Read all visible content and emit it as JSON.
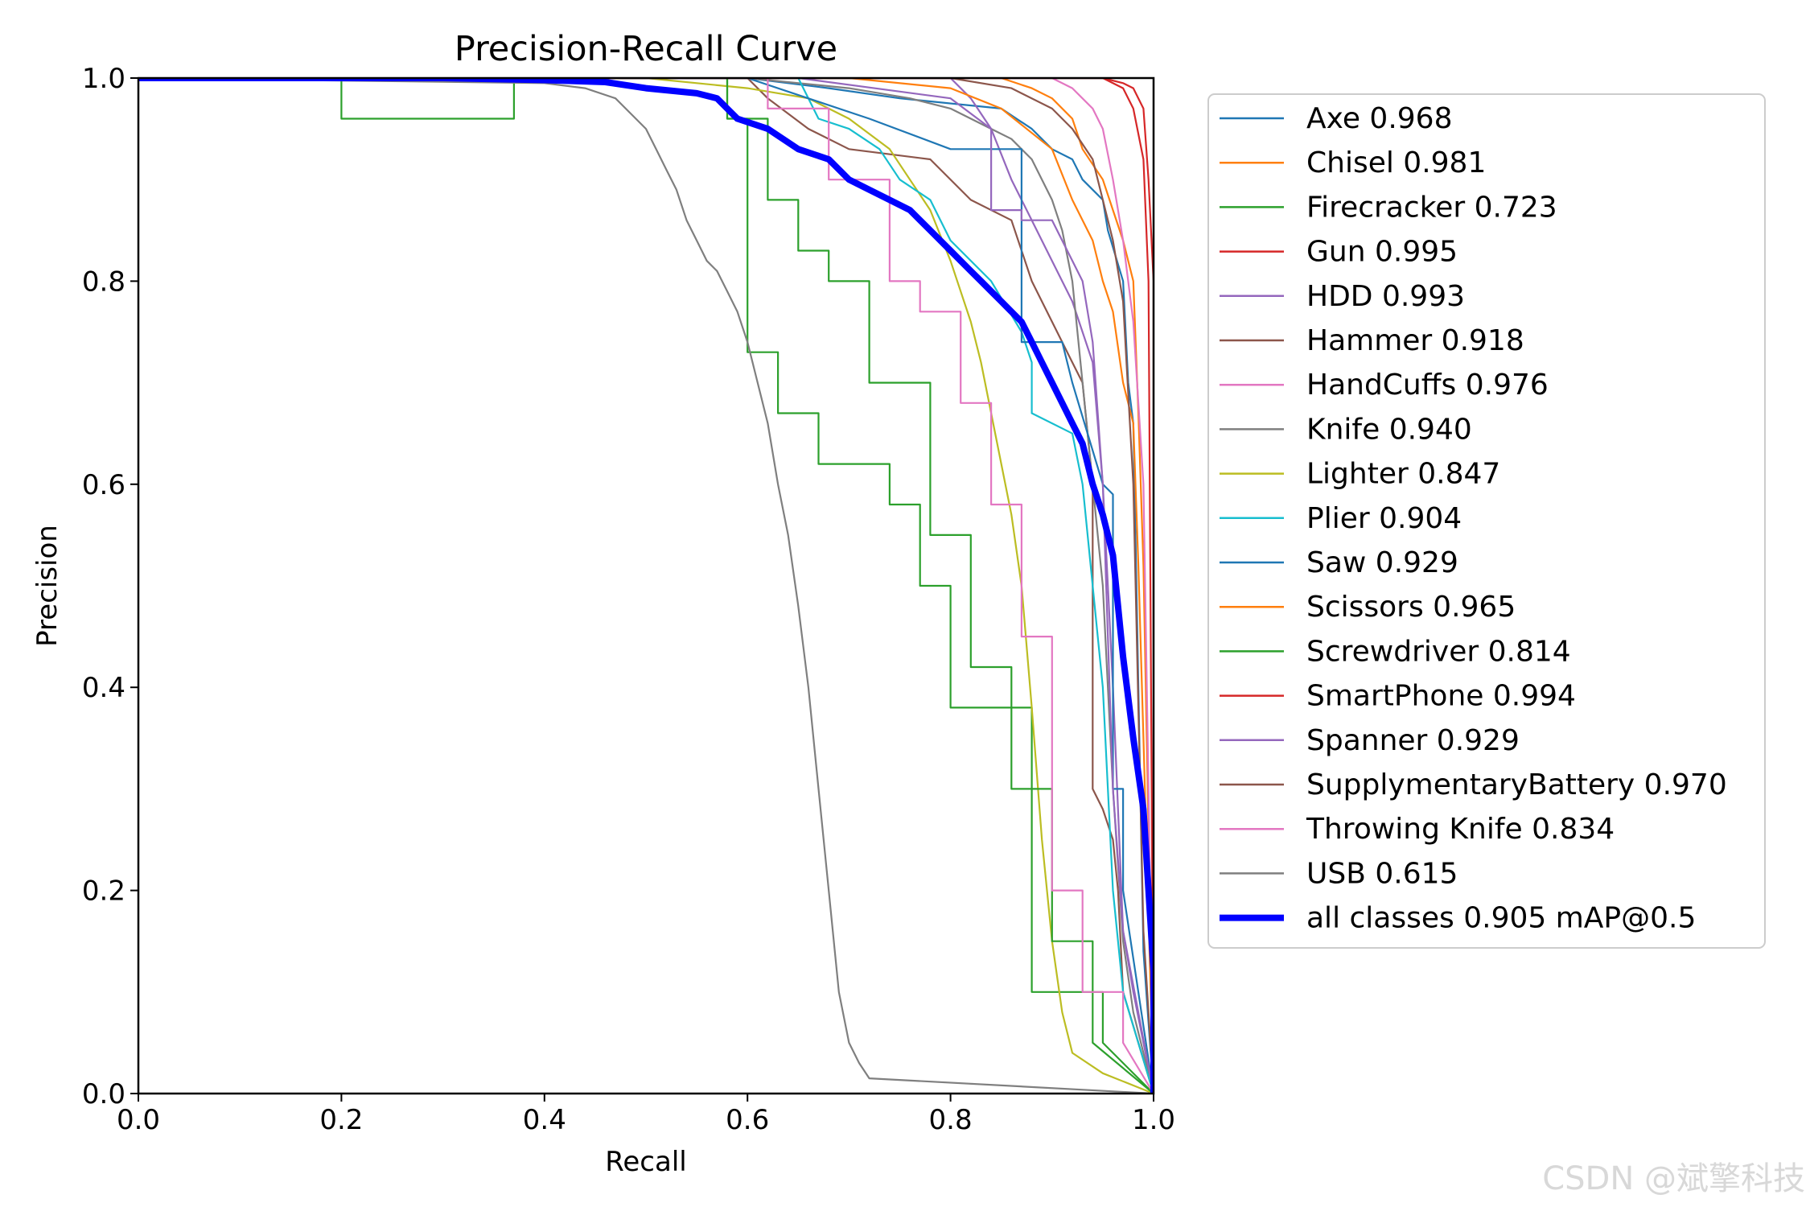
{
  "chart_data": {
    "type": "line",
    "title": "Precision-Recall Curve",
    "xlabel": "Recall",
    "ylabel": "Precision",
    "xlim": [
      0,
      1
    ],
    "ylim": [
      0,
      1
    ],
    "x_ticks": [
      "0.0",
      "0.2",
      "0.4",
      "0.6",
      "0.8",
      "1.0"
    ],
    "y_ticks": [
      "0.0",
      "0.2",
      "0.4",
      "0.6",
      "0.8",
      "1.0"
    ],
    "grid": false,
    "legend_position": "outside-right",
    "series": [
      {
        "name": "Axe",
        "ap": "0.968",
        "label": "Axe 0.968",
        "color": "#1f77b4",
        "x": [
          0,
          0.6,
          0.68,
          0.75,
          0.85,
          0.88,
          0.9,
          0.92,
          0.93,
          0.95,
          0.955,
          0.97,
          0.975,
          0.98,
          0.99,
          1.0
        ],
        "y": [
          1,
          1,
          0.99,
          0.98,
          0.97,
          0.95,
          0.93,
          0.92,
          0.9,
          0.88,
          0.85,
          0.8,
          0.7,
          0.66,
          0.14,
          0
        ]
      },
      {
        "name": "Chisel",
        "ap": "0.981",
        "label": "Chisel 0.981",
        "color": "#ff7f0e",
        "x": [
          0,
          0.85,
          0.88,
          0.9,
          0.92,
          0.93,
          0.95,
          0.96,
          0.97,
          0.98,
          0.985,
          0.99,
          1.0
        ],
        "y": [
          1,
          1,
          0.99,
          0.98,
          0.96,
          0.93,
          0.9,
          0.87,
          0.84,
          0.8,
          0.67,
          0.52,
          0
        ]
      },
      {
        "name": "Firecracker",
        "ap": "0.723",
        "label": "Firecracker 0.723",
        "color": "#2ca02c",
        "x": [
          0,
          0.2,
          0.2,
          0.37,
          0.37,
          0.58,
          0.58,
          0.6,
          0.6,
          0.63,
          0.63,
          0.67,
          0.67,
          0.74,
          0.74,
          0.77,
          0.77,
          0.8,
          0.8,
          0.88,
          0.88,
          0.95,
          0.95,
          1.0
        ],
        "y": [
          1,
          1,
          0.96,
          0.96,
          1,
          1,
          0.96,
          0.96,
          0.73,
          0.73,
          0.67,
          0.67,
          0.62,
          0.62,
          0.58,
          0.58,
          0.5,
          0.5,
          0.38,
          0.38,
          0.1,
          0.1,
          0.05,
          0
        ]
      },
      {
        "name": "Gun",
        "ap": "0.995",
        "label": "Gun 0.995",
        "color": "#d62728",
        "x": [
          0,
          0.9,
          0.95,
          0.97,
          0.98,
          0.99,
          0.995,
          1.0,
          1.0
        ],
        "y": [
          1,
          1,
          1,
          0.995,
          0.99,
          0.97,
          0.9,
          0.8,
          0
        ]
      },
      {
        "name": "HDD",
        "ap": "0.993",
        "label": "HDD 0.993",
        "color": "#9467bd",
        "x": [
          0,
          0.8,
          0.82,
          0.84,
          0.86,
          0.88,
          0.9,
          0.92,
          0.94,
          0.95,
          0.96,
          0.97,
          0.98,
          0.99,
          1.0
        ],
        "y": [
          1,
          1,
          0.98,
          0.95,
          0.9,
          0.86,
          0.82,
          0.78,
          0.72,
          0.6,
          0.4,
          0.16,
          0.1,
          0.05,
          0
        ]
      },
      {
        "name": "Hammer",
        "ap": "0.918",
        "label": "Hammer 0.918",
        "color": "#8c564b",
        "x": [
          0,
          0.6,
          0.62,
          0.66,
          0.7,
          0.78,
          0.82,
          0.86,
          0.88,
          0.9,
          0.92,
          0.93,
          0.94,
          0.94,
          0.95,
          0.96,
          0.965,
          0.97,
          1.0
        ],
        "y": [
          1,
          1,
          0.98,
          0.95,
          0.93,
          0.92,
          0.88,
          0.86,
          0.8,
          0.76,
          0.72,
          0.7,
          0.6,
          0.3,
          0.28,
          0.25,
          0.2,
          0.1,
          0
        ]
      },
      {
        "name": "HandCuffs",
        "ap": "0.976",
        "label": "HandCuffs 0.976",
        "color": "#e377c2",
        "x": [
          0,
          0.9,
          0.92,
          0.94,
          0.95,
          0.96,
          0.97,
          0.98,
          0.99,
          1.0
        ],
        "y": [
          1,
          1,
          0.99,
          0.97,
          0.95,
          0.9,
          0.84,
          0.76,
          0.6,
          0
        ]
      },
      {
        "name": "Knife",
        "ap": "0.940",
        "label": "Knife 0.940",
        "color": "#7f7f7f",
        "x": [
          0,
          0.6,
          0.7,
          0.76,
          0.8,
          0.84,
          0.86,
          0.88,
          0.9,
          0.91,
          0.92,
          0.93,
          0.94,
          0.95,
          0.96,
          0.97,
          0.98,
          1.0
        ],
        "y": [
          1,
          1,
          0.99,
          0.98,
          0.97,
          0.95,
          0.94,
          0.92,
          0.88,
          0.85,
          0.8,
          0.7,
          0.6,
          0.5,
          0.3,
          0.15,
          0.08,
          0
        ]
      },
      {
        "name": "Lighter",
        "ap": "0.847",
        "label": "Lighter 0.847",
        "color": "#bcbd22",
        "x": [
          0,
          0.5,
          0.6,
          0.66,
          0.7,
          0.74,
          0.76,
          0.78,
          0.8,
          0.82,
          0.83,
          0.84,
          0.85,
          0.86,
          0.87,
          0.88,
          0.89,
          0.9,
          0.91,
          0.92,
          0.95,
          1.0
        ],
        "y": [
          1,
          1,
          0.99,
          0.98,
          0.96,
          0.93,
          0.9,
          0.87,
          0.82,
          0.76,
          0.72,
          0.67,
          0.62,
          0.57,
          0.5,
          0.38,
          0.25,
          0.15,
          0.08,
          0.04,
          0.02,
          0
        ]
      },
      {
        "name": "Plier",
        "ap": "0.904",
        "label": "Plier 0.904",
        "color": "#17becf",
        "x": [
          0,
          0.65,
          0.67,
          0.7,
          0.73,
          0.75,
          0.78,
          0.8,
          0.84,
          0.87,
          0.88,
          0.88,
          0.92,
          0.93,
          0.94,
          0.95,
          0.96,
          0.97,
          1.0
        ],
        "y": [
          1,
          1,
          0.96,
          0.95,
          0.93,
          0.9,
          0.88,
          0.84,
          0.8,
          0.75,
          0.72,
          0.67,
          0.65,
          0.6,
          0.5,
          0.4,
          0.2,
          0.1,
          0
        ]
      },
      {
        "name": "Saw",
        "ap": "0.929",
        "label": "Saw 0.929",
        "color": "#1f77b4",
        "x": [
          0,
          0.6,
          0.72,
          0.8,
          0.87,
          0.87,
          0.91,
          0.92,
          0.95,
          0.96,
          0.96,
          0.97,
          0.97,
          1.0
        ],
        "y": [
          1,
          1,
          0.96,
          0.93,
          0.93,
          0.74,
          0.74,
          0.7,
          0.6,
          0.59,
          0.3,
          0.3,
          0.2,
          0
        ]
      },
      {
        "name": "Scissors",
        "ap": "0.965",
        "label": "Scissors 0.965",
        "color": "#ff7f0e",
        "x": [
          0,
          0.7,
          0.8,
          0.85,
          0.9,
          0.92,
          0.94,
          0.95,
          0.96,
          0.97,
          0.98,
          0.985,
          0.99,
          1.0
        ],
        "y": [
          1,
          1,
          0.99,
          0.97,
          0.93,
          0.88,
          0.84,
          0.8,
          0.77,
          0.7,
          0.66,
          0.52,
          0.35,
          0
        ]
      },
      {
        "name": "Screwdriver",
        "ap": "0.814",
        "label": "Screwdriver 0.814",
        "color": "#2ca02c",
        "x": [
          0,
          0.58,
          0.58,
          0.62,
          0.62,
          0.65,
          0.65,
          0.68,
          0.68,
          0.72,
          0.72,
          0.78,
          0.78,
          0.82,
          0.82,
          0.86,
          0.86,
          0.9,
          0.9,
          0.94,
          0.94,
          1.0
        ],
        "y": [
          1,
          1,
          0.96,
          0.96,
          0.88,
          0.88,
          0.83,
          0.83,
          0.8,
          0.8,
          0.7,
          0.7,
          0.55,
          0.55,
          0.42,
          0.42,
          0.3,
          0.3,
          0.15,
          0.15,
          0.05,
          0
        ]
      },
      {
        "name": "SmartPhone",
        "ap": "0.994",
        "label": "SmartPhone 0.994",
        "color": "#d62728",
        "x": [
          0,
          0.95,
          0.97,
          0.98,
          0.99,
          0.995,
          1.0
        ],
        "y": [
          1,
          1,
          0.99,
          0.97,
          0.92,
          0.8,
          0
        ]
      },
      {
        "name": "Spanner",
        "ap": "0.929",
        "label": "Spanner 0.929",
        "color": "#9467bd",
        "x": [
          0,
          0.65,
          0.8,
          0.84,
          0.84,
          0.87,
          0.87,
          0.9,
          0.91,
          0.93,
          0.94,
          0.95,
          0.96,
          0.97,
          1.0
        ],
        "y": [
          1,
          1,
          0.98,
          0.95,
          0.87,
          0.87,
          0.86,
          0.86,
          0.84,
          0.8,
          0.74,
          0.6,
          0.3,
          0.16,
          0
        ]
      },
      {
        "name": "SupplymentaryBattery",
        "ap": "0.970",
        "label": "SupplymentaryBattery 0.970",
        "color": "#8c564b",
        "x": [
          0,
          0.8,
          0.86,
          0.9,
          0.92,
          0.94,
          0.95,
          0.96,
          0.97,
          0.98,
          0.99,
          1.0
        ],
        "y": [
          1,
          1,
          0.99,
          0.97,
          0.95,
          0.92,
          0.88,
          0.84,
          0.78,
          0.6,
          0.16,
          0
        ]
      },
      {
        "name": "Throwing Knife",
        "ap": "0.834",
        "label": "Throwing Knife 0.834",
        "color": "#e377c2",
        "x": [
          0,
          0.62,
          0.62,
          0.68,
          0.68,
          0.74,
          0.74,
          0.77,
          0.77,
          0.81,
          0.81,
          0.84,
          0.84,
          0.87,
          0.87,
          0.9,
          0.9,
          0.93,
          0.93,
          0.97,
          0.97,
          1.0
        ],
        "y": [
          1,
          1,
          0.97,
          0.97,
          0.9,
          0.9,
          0.8,
          0.8,
          0.77,
          0.77,
          0.68,
          0.68,
          0.58,
          0.58,
          0.45,
          0.45,
          0.2,
          0.2,
          0.1,
          0.1,
          0.05,
          0
        ]
      },
      {
        "name": "USB",
        "ap": "0.615",
        "label": "USB 0.615",
        "color": "#7f7f7f",
        "x": [
          0,
          0.4,
          0.44,
          0.47,
          0.49,
          0.5,
          0.51,
          0.52,
          0.53,
          0.54,
          0.55,
          0.56,
          0.57,
          0.58,
          0.59,
          0.6,
          0.61,
          0.62,
          0.63,
          0.64,
          0.65,
          0.66,
          0.67,
          0.68,
          0.69,
          0.7,
          0.71,
          0.72,
          1.0
        ],
        "y": [
          1,
          0.995,
          0.99,
          0.98,
          0.96,
          0.95,
          0.93,
          0.91,
          0.89,
          0.86,
          0.84,
          0.82,
          0.81,
          0.79,
          0.77,
          0.74,
          0.7,
          0.66,
          0.6,
          0.55,
          0.48,
          0.4,
          0.3,
          0.2,
          0.1,
          0.05,
          0.03,
          0.015,
          0
        ]
      },
      {
        "name": "all classes",
        "ap": "0.905",
        "label": "all classes 0.905 mAP@0.5",
        "color": "#0000ff",
        "bold": true,
        "x": [
          0,
          0.3,
          0.4,
          0.46,
          0.5,
          0.55,
          0.57,
          0.58,
          0.59,
          0.62,
          0.65,
          0.68,
          0.7,
          0.72,
          0.74,
          0.76,
          0.77,
          0.78,
          0.79,
          0.8,
          0.81,
          0.82,
          0.83,
          0.84,
          0.85,
          0.86,
          0.87,
          0.88,
          0.89,
          0.9,
          0.91,
          0.92,
          0.93,
          0.94,
          0.95,
          0.96,
          0.965,
          0.97,
          0.98,
          0.99,
          1.0,
          1.0
        ],
        "y": [
          1,
          1,
          0.998,
          0.996,
          0.99,
          0.985,
          0.98,
          0.97,
          0.96,
          0.95,
          0.93,
          0.92,
          0.9,
          0.89,
          0.88,
          0.87,
          0.86,
          0.85,
          0.84,
          0.83,
          0.82,
          0.81,
          0.8,
          0.79,
          0.78,
          0.77,
          0.76,
          0.74,
          0.72,
          0.7,
          0.68,
          0.66,
          0.64,
          0.6,
          0.57,
          0.53,
          0.48,
          0.43,
          0.35,
          0.28,
          0.12,
          0
        ]
      }
    ]
  },
  "watermark": "CSDN @斌擎科技"
}
